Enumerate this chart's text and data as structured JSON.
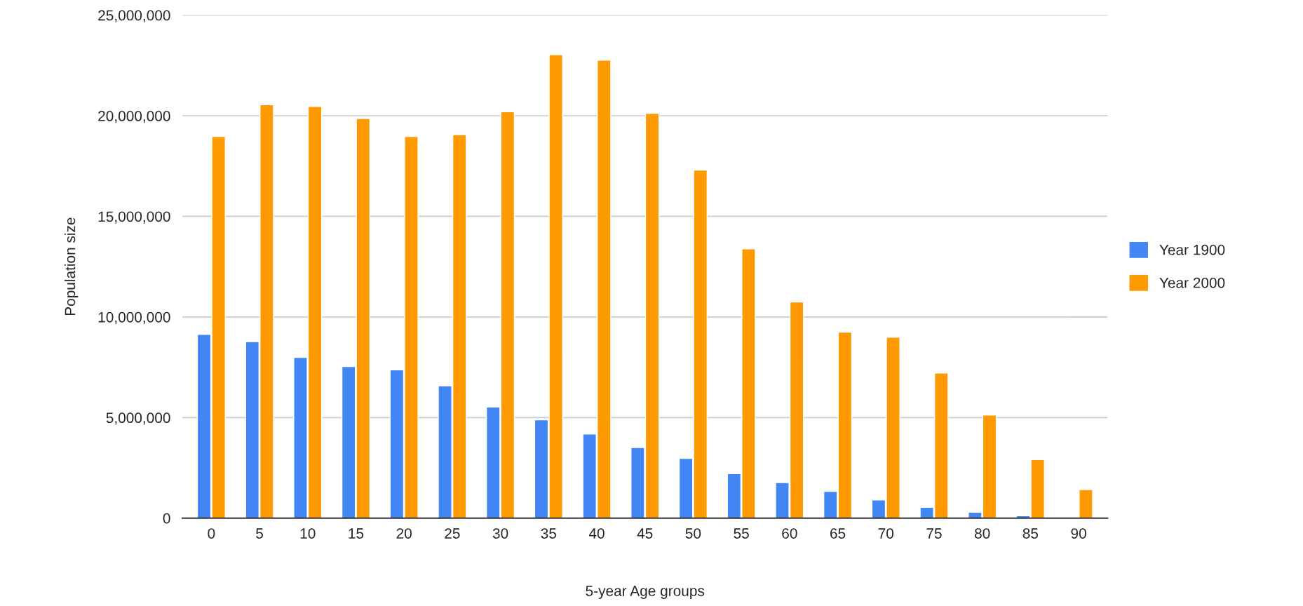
{
  "chart_data": {
    "type": "bar",
    "xlabel": "5-year Age groups",
    "ylabel": "Population size",
    "categories": [
      "0",
      "5",
      "10",
      "15",
      "20",
      "25",
      "30",
      "35",
      "40",
      "45",
      "50",
      "55",
      "60",
      "65",
      "70",
      "75",
      "80",
      "85",
      "90"
    ],
    "series": [
      {
        "name": "Year 1900",
        "color": "#4285f4",
        "values": [
          9130000,
          8770000,
          7990000,
          7540000,
          7370000,
          6580000,
          5520000,
          4890000,
          4180000,
          3510000,
          2970000,
          2210000,
          1770000,
          1330000,
          900000,
          540000,
          290000,
          120000,
          null
        ]
      },
      {
        "name": "Year 2000",
        "color": "#ff9900",
        "values": [
          18970000,
          20550000,
          20460000,
          19860000,
          18970000,
          19060000,
          20200000,
          23030000,
          22760000,
          20120000,
          17300000,
          13380000,
          10740000,
          9240000,
          8990000,
          7210000,
          5120000,
          2910000,
          1420000
        ]
      }
    ],
    "ylim": [
      0,
      25000000
    ],
    "yticks": [
      {
        "value": 0,
        "label": "0"
      },
      {
        "value": 5000000,
        "label": "5,000,000"
      },
      {
        "value": 10000000,
        "label": "10,000,000"
      },
      {
        "value": 15000000,
        "label": "15,000,000"
      },
      {
        "value": 20000000,
        "label": "20,000,000"
      },
      {
        "value": 25000000,
        "label": "25,000,000"
      }
    ],
    "grid": "y",
    "legend": "right"
  }
}
